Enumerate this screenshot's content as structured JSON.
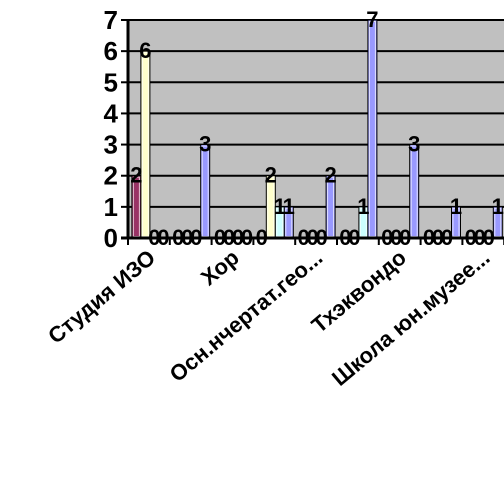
{
  "chart_data": {
    "type": "bar",
    "title": "",
    "xlabel": "",
    "ylabel": "",
    "ylim": [
      0,
      7
    ],
    "yticks": [
      0,
      1,
      2,
      3,
      4,
      5,
      6,
      7
    ],
    "grid": true,
    "legend": "none",
    "categories": [
      "Студия ИЗО",
      "",
      "Хор",
      "",
      "Осн.нчертат.гео...",
      "",
      "Тхэквондо",
      "",
      "Школа юн.музее...",
      ""
    ],
    "series": [
      {
        "color": "#993366",
        "values": [
          2,
          0,
          0,
          0,
          0,
          0,
          0,
          0,
          0,
          0
        ]
      },
      {
        "color": "#FFFFCC",
        "values": [
          6,
          0,
          0,
          2,
          0,
          0,
          0,
          0,
          0,
          0
        ]
      },
      {
        "color": "#CCFFFF",
        "values": [
          0,
          0,
          0,
          1,
          0,
          1,
          0,
          0,
          0,
          0
        ]
      },
      {
        "color": "#9999FF",
        "values": [
          0,
          3,
          0,
          1,
          2,
          7,
          3,
          1,
          1,
          0
        ]
      }
    ],
    "plot_background": "#C0C0C0"
  }
}
